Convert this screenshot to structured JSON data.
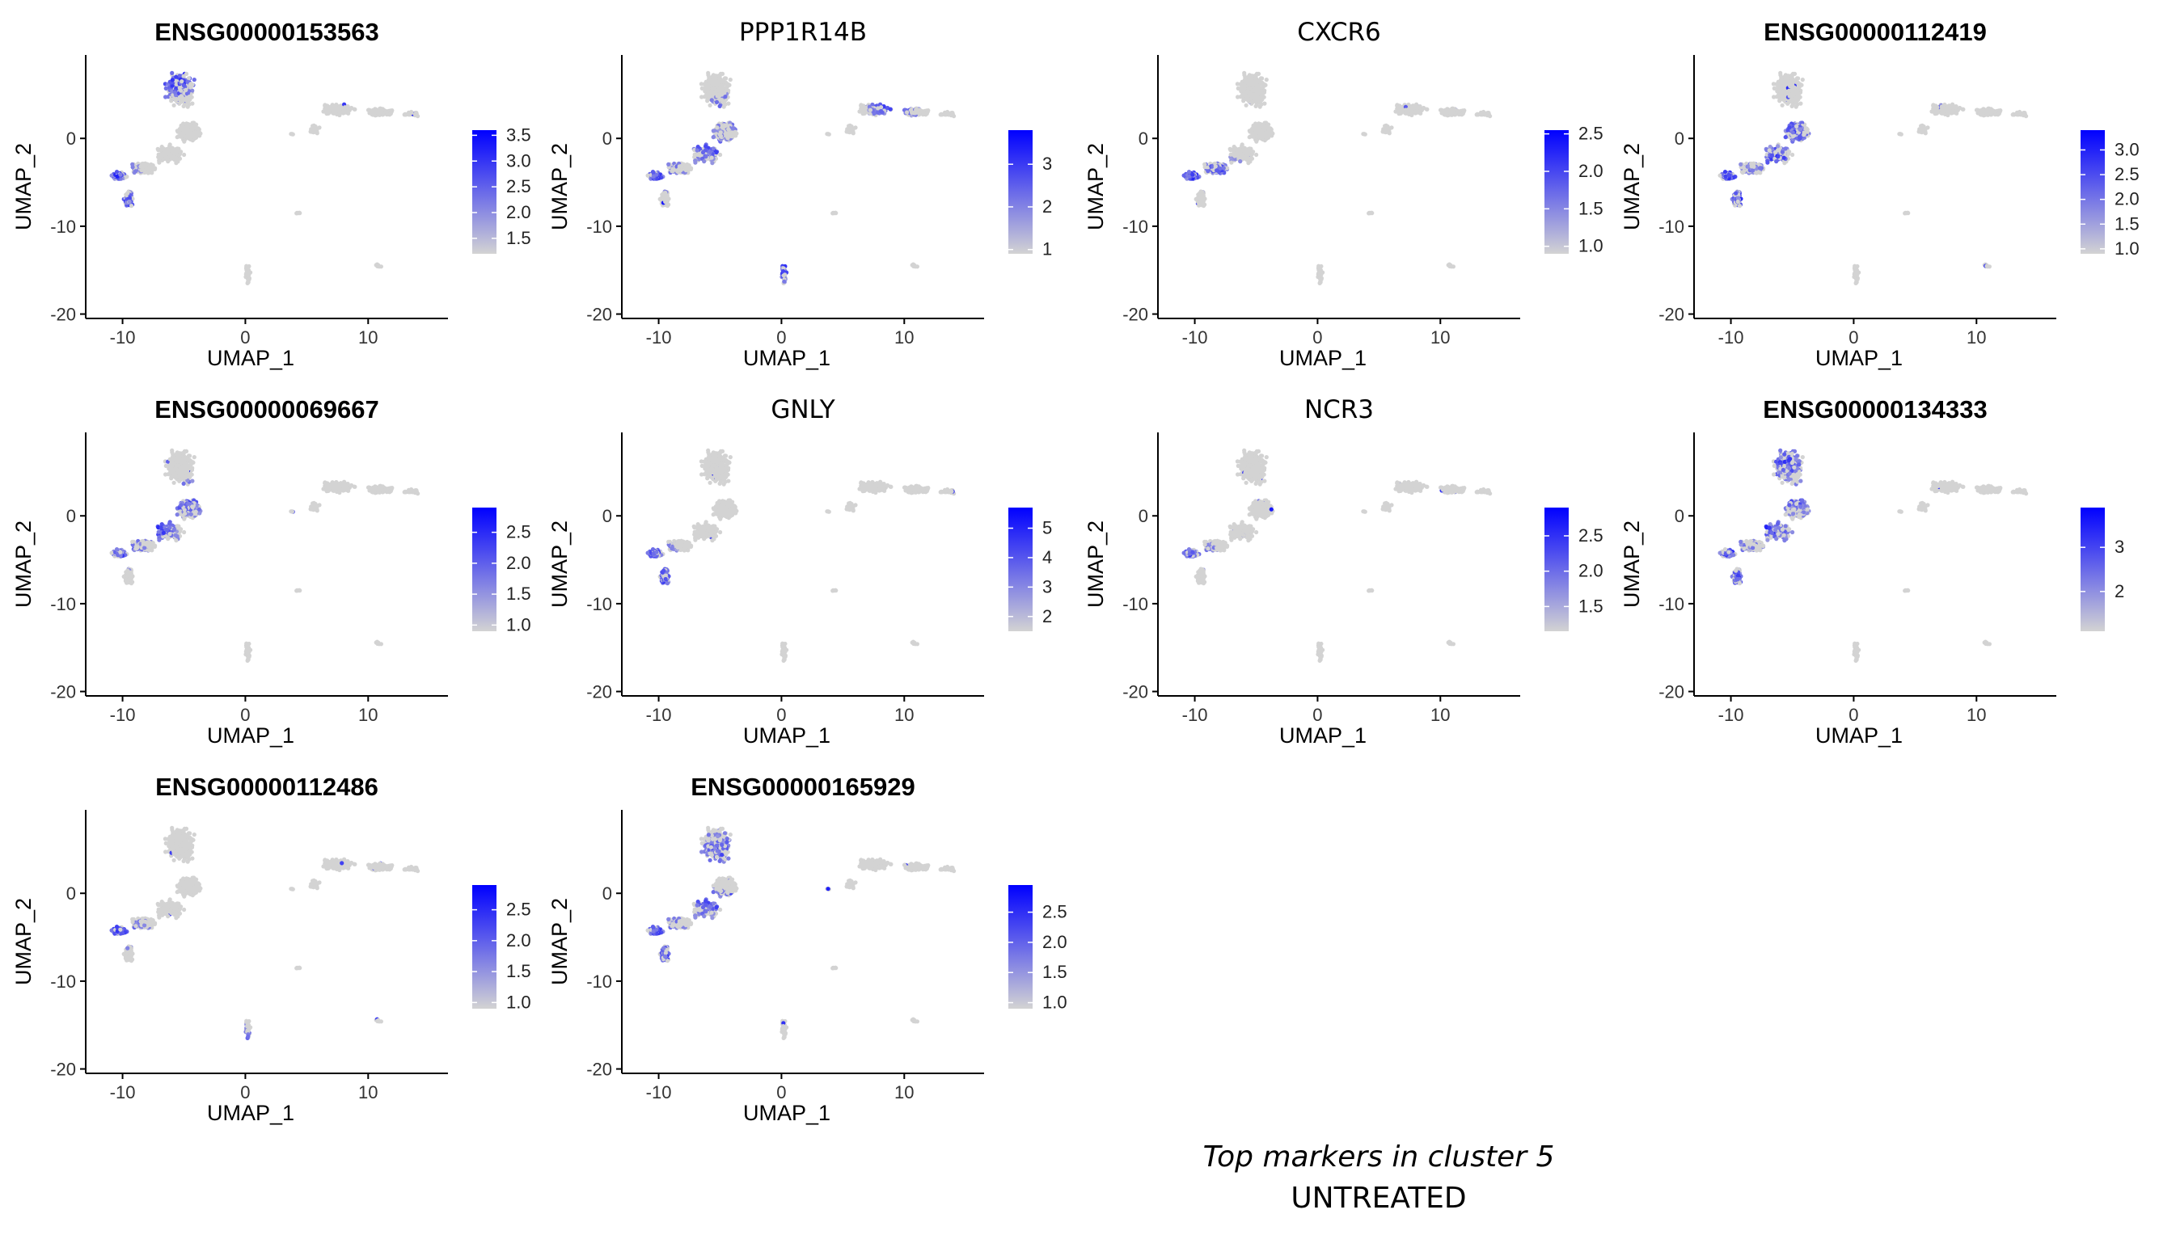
{
  "chart_data": {
    "type": "scatter",
    "panels": [
      {
        "title": "ENSG00000153563",
        "bold": true,
        "legend_ticks": [
          1.5,
          2.0,
          2.5,
          3.0,
          3.5
        ],
        "legend_range": [
          1.2,
          3.6
        ],
        "hot": [
          [
            -10.5,
            -4.3
          ],
          [
            -9.5,
            -7.8
          ],
          [
            -6,
            6
          ],
          [
            -5,
            7
          ]
        ]
      },
      {
        "title": "PPP1R14B",
        "bold": false,
        "legend_ticks": [
          1,
          2,
          3
        ],
        "legend_range": [
          0.9,
          3.8
        ],
        "hot": [
          [
            -10,
            -4.2
          ],
          [
            -6,
            -1
          ],
          [
            -4,
            3
          ],
          [
            9,
            3.5
          ],
          [
            0,
            -15
          ]
        ]
      },
      {
        "title": "CXCR6",
        "bold": false,
        "legend_ticks": [
          1.0,
          1.5,
          2.0,
          2.5
        ],
        "legend_range": [
          0.9,
          2.55
        ],
        "hot": [
          [
            -10.3,
            -4.2
          ],
          [
            -8,
            -4
          ]
        ]
      },
      {
        "title": "ENSG00000112419",
        "bold": true,
        "legend_ticks": [
          1.0,
          1.5,
          2.0,
          2.5,
          3.0
        ],
        "legend_range": [
          0.9,
          3.4
        ],
        "hot": [
          [
            -10,
            -4.3
          ],
          [
            -7,
            -2
          ],
          [
            -5,
            1
          ],
          [
            -9,
            -7
          ]
        ]
      },
      {
        "title": "ENSG00000069667",
        "bold": true,
        "legend_ticks": [
          1.0,
          1.5,
          2.0,
          2.5
        ],
        "legend_range": [
          0.9,
          2.9
        ],
        "hot": [
          [
            -10,
            -4.2
          ],
          [
            -7,
            -1.5
          ],
          [
            -5,
            2
          ]
        ]
      },
      {
        "title": "GNLY",
        "bold": false,
        "legend_ticks": [
          2,
          3,
          4,
          5
        ],
        "legend_range": [
          1.5,
          5.7
        ],
        "hot": [
          [
            -9.6,
            -7.5
          ],
          [
            -10,
            -5.5
          ],
          [
            -10.5,
            -4.2
          ]
        ]
      },
      {
        "title": "NCR3",
        "bold": false,
        "legend_ticks": [
          1.5,
          2.0,
          2.5
        ],
        "legend_range": [
          1.15,
          2.9
        ],
        "hot": [
          [
            -10.3,
            -4.2
          ]
        ]
      },
      {
        "title": "ENSG00000134333",
        "bold": true,
        "legend_ticks": [
          2,
          3
        ],
        "legend_range": [
          1.1,
          3.9
        ],
        "hot": [
          [
            -10,
            -4.2
          ],
          [
            -7,
            -1.5
          ],
          [
            -5,
            2
          ],
          [
            -5.5,
            6
          ],
          [
            -9,
            -7
          ]
        ]
      },
      {
        "title": "ENSG00000112486",
        "bold": true,
        "legend_ticks": [
          1.0,
          1.5,
          2.0,
          2.5
        ],
        "legend_range": [
          0.9,
          2.9
        ],
        "hot": [
          [
            -10,
            -4.2
          ],
          [
            0,
            -17
          ]
        ]
      },
      {
        "title": "ENSG00000165929",
        "bold": true,
        "legend_ticks": [
          1.0,
          1.5,
          2.0,
          2.5
        ],
        "legend_range": [
          0.9,
          2.95
        ],
        "hot": [
          [
            -10,
            -4.2
          ],
          [
            -6,
            -1
          ],
          [
            -5,
            5
          ],
          [
            -9,
            -7
          ]
        ]
      }
    ],
    "xlabel": "UMAP_1",
    "ylabel": "UMAP_2",
    "xticks": [
      -10,
      0,
      10
    ],
    "yticks": [
      -20,
      -10,
      0
    ],
    "xlim": [
      -13,
      16.5
    ],
    "ylim": [
      -20.5,
      9.5
    ],
    "low_color": "#d3d3d3",
    "high_color": "#0000ff",
    "grid": false
  },
  "caption": {
    "line1": "Top markers in cluster 5",
    "line2": "UNTREATED"
  }
}
